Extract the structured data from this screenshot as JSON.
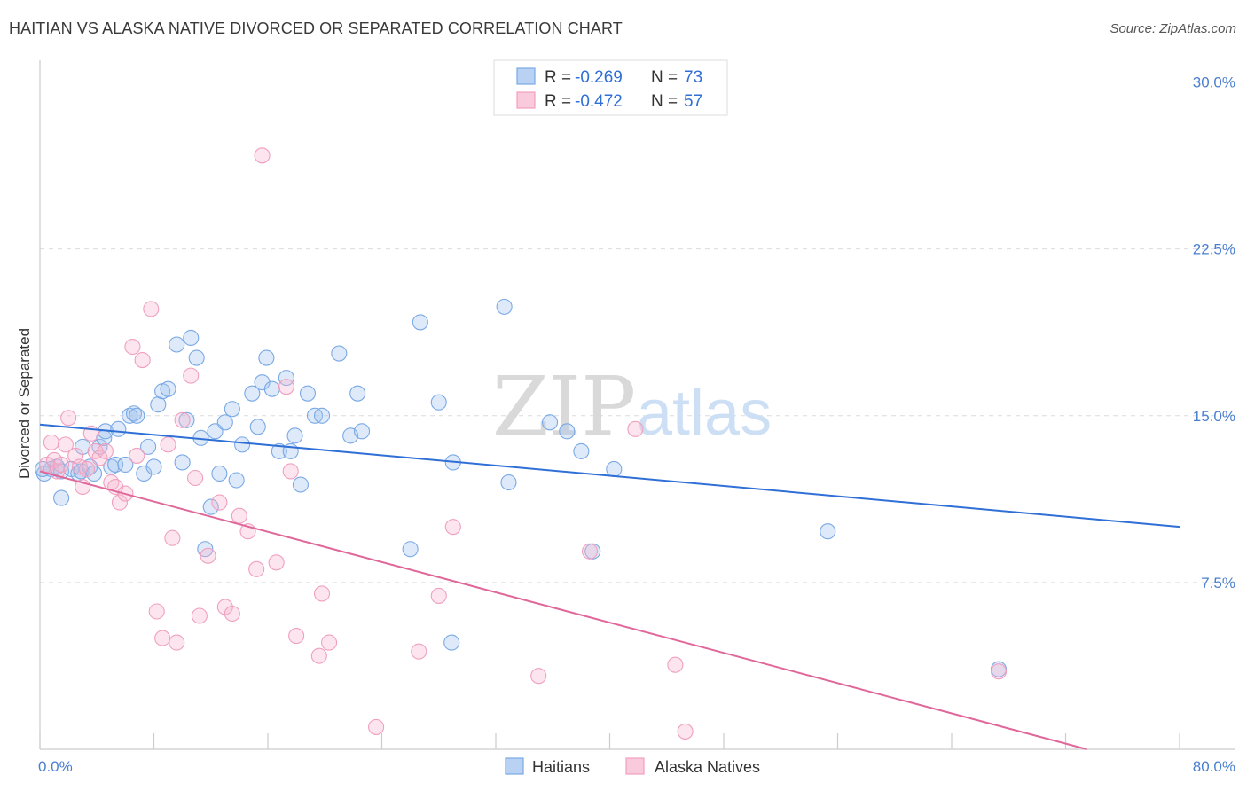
{
  "title": "HAITIAN VS ALASKA NATIVE DIVORCED OR SEPARATED CORRELATION CHART",
  "source": "Source: ZipAtlas.com",
  "watermark": {
    "zip": "ZIP",
    "atlas": "atlas"
  },
  "legend_top": {
    "rows": [
      {
        "r_label": "R = ",
        "r_value": "-0.269",
        "n_label": "N = ",
        "n_value": "73"
      },
      {
        "r_label": "R = ",
        "r_value": "-0.472",
        "n_label": "N = ",
        "n_value": "57"
      }
    ]
  },
  "legend_bottom": [
    "Haitians",
    "Alaska Natives"
  ],
  "chart_data": {
    "type": "scatter",
    "title": "HAITIAN VS ALASKA NATIVE DIVORCED OR SEPARATED CORRELATION CHART",
    "xlabel": "",
    "ylabel": "Divorced or Separated",
    "xlim": [
      0,
      80
    ],
    "ylim": [
      0,
      30.5
    ],
    "x_tick_labels": [
      "0.0%",
      "80.0%"
    ],
    "y_ticks": [
      7.5,
      15.0,
      22.5,
      30.0
    ],
    "y_tick_labels": [
      "7.5%",
      "15.0%",
      "22.5%",
      "30.0%"
    ],
    "grid": "horizontal dashed",
    "legend_position": "top-center",
    "colors": {
      "haitians": "#7aa9e6",
      "alaska": "#f2a0bd",
      "haitians_line": "#2f6fd6",
      "alaska_line": "#e0679a"
    },
    "series": [
      {
        "name": "Haitians",
        "r": -0.269,
        "n": 73,
        "trend": {
          "x": [
            0,
            80
          ],
          "y": [
            14.6,
            10.0
          ]
        },
        "points": [
          [
            0.3,
            12.4
          ],
          [
            0.8,
            12.6
          ],
          [
            1.2,
            12.7
          ],
          [
            1.5,
            12.5
          ],
          [
            1.5,
            11.3
          ],
          [
            2.2,
            12.6
          ],
          [
            2.7,
            12.4
          ],
          [
            2.9,
            12.5
          ],
          [
            3.0,
            13.6
          ],
          [
            3.5,
            12.7
          ],
          [
            3.8,
            12.4
          ],
          [
            4.2,
            13.6
          ],
          [
            4.5,
            14.0
          ],
          [
            4.6,
            14.3
          ],
          [
            5.0,
            12.7
          ],
          [
            5.3,
            12.8
          ],
          [
            5.5,
            14.4
          ],
          [
            6.0,
            12.8
          ],
          [
            6.3,
            15.0
          ],
          [
            6.6,
            15.1
          ],
          [
            6.8,
            15.0
          ],
          [
            7.3,
            12.4
          ],
          [
            7.6,
            13.6
          ],
          [
            8.0,
            12.7
          ],
          [
            8.3,
            15.5
          ],
          [
            8.6,
            16.1
          ],
          [
            9.0,
            16.2
          ],
          [
            9.6,
            18.2
          ],
          [
            10.0,
            12.9
          ],
          [
            10.3,
            14.8
          ],
          [
            10.6,
            18.5
          ],
          [
            11.0,
            17.6
          ],
          [
            11.3,
            14.0
          ],
          [
            11.6,
            9.0
          ],
          [
            12.0,
            10.9
          ],
          [
            12.3,
            14.3
          ],
          [
            12.6,
            12.4
          ],
          [
            13.0,
            14.7
          ],
          [
            13.5,
            15.3
          ],
          [
            13.8,
            12.1
          ],
          [
            14.2,
            13.7
          ],
          [
            14.9,
            16.0
          ],
          [
            15.3,
            14.5
          ],
          [
            15.6,
            16.5
          ],
          [
            15.9,
            17.6
          ],
          [
            16.3,
            16.2
          ],
          [
            16.8,
            13.4
          ],
          [
            17.3,
            16.7
          ],
          [
            17.6,
            13.4
          ],
          [
            17.9,
            14.1
          ],
          [
            18.3,
            11.9
          ],
          [
            18.8,
            16.0
          ],
          [
            19.3,
            15.0
          ],
          [
            19.8,
            15.0
          ],
          [
            21.0,
            17.8
          ],
          [
            21.8,
            14.1
          ],
          [
            22.3,
            16.0
          ],
          [
            22.6,
            14.3
          ],
          [
            26.0,
            9.0
          ],
          [
            26.7,
            19.2
          ],
          [
            28.0,
            15.6
          ],
          [
            29.0,
            12.9
          ],
          [
            32.6,
            19.9
          ],
          [
            32.9,
            12.0
          ],
          [
            35.8,
            14.7
          ],
          [
            37.0,
            14.3
          ],
          [
            38.0,
            13.4
          ],
          [
            38.8,
            8.9
          ],
          [
            40.3,
            12.6
          ],
          [
            28.9,
            4.8
          ],
          [
            55.3,
            9.8
          ],
          [
            67.3,
            3.6
          ],
          [
            0.2,
            12.6
          ]
        ]
      },
      {
        "name": "Alaska Natives",
        "r": -0.472,
        "n": 57,
        "trend": {
          "x": [
            0,
            73.5
          ],
          "y": [
            12.5,
            0
          ]
        },
        "points": [
          [
            0.5,
            12.8
          ],
          [
            0.8,
            13.8
          ],
          [
            1.0,
            13.0
          ],
          [
            1.2,
            12.5
          ],
          [
            1.5,
            12.8
          ],
          [
            1.8,
            13.7
          ],
          [
            2.0,
            14.9
          ],
          [
            2.5,
            13.2
          ],
          [
            2.8,
            12.7
          ],
          [
            3.0,
            11.8
          ],
          [
            3.3,
            12.6
          ],
          [
            3.6,
            14.2
          ],
          [
            3.9,
            13.4
          ],
          [
            4.2,
            13.1
          ],
          [
            4.6,
            13.4
          ],
          [
            5.0,
            12.0
          ],
          [
            5.3,
            11.8
          ],
          [
            5.6,
            11.1
          ],
          [
            6.0,
            11.5
          ],
          [
            6.5,
            18.1
          ],
          [
            6.8,
            13.2
          ],
          [
            7.2,
            17.5
          ],
          [
            7.8,
            19.8
          ],
          [
            8.2,
            6.2
          ],
          [
            8.6,
            5.0
          ],
          [
            9.0,
            13.7
          ],
          [
            9.3,
            9.5
          ],
          [
            9.6,
            4.8
          ],
          [
            10.0,
            14.8
          ],
          [
            10.6,
            16.8
          ],
          [
            10.9,
            12.2
          ],
          [
            11.2,
            6.0
          ],
          [
            11.8,
            8.7
          ],
          [
            12.6,
            11.1
          ],
          [
            13.0,
            6.4
          ],
          [
            13.5,
            6.1
          ],
          [
            14.0,
            10.5
          ],
          [
            14.6,
            9.8
          ],
          [
            15.2,
            8.1
          ],
          [
            15.6,
            26.7
          ],
          [
            16.6,
            8.4
          ],
          [
            17.3,
            16.3
          ],
          [
            17.6,
            12.5
          ],
          [
            18.0,
            5.1
          ],
          [
            19.6,
            4.2
          ],
          [
            19.8,
            7.0
          ],
          [
            20.3,
            4.8
          ],
          [
            23.6,
            1.0
          ],
          [
            26.6,
            4.4
          ],
          [
            28.0,
            6.9
          ],
          [
            29.0,
            10.0
          ],
          [
            35.0,
            3.3
          ],
          [
            38.6,
            8.9
          ],
          [
            41.8,
            14.4
          ],
          [
            44.6,
            3.8
          ],
          [
            45.3,
            0.8
          ],
          [
            67.3,
            3.5
          ]
        ]
      }
    ]
  }
}
